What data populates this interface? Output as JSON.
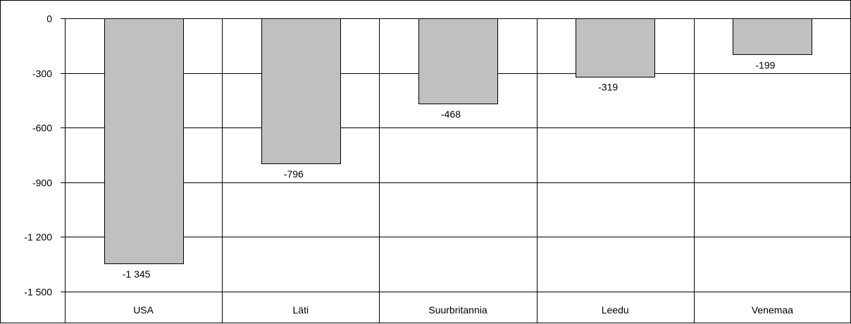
{
  "chart_data": {
    "type": "bar",
    "title": "",
    "xlabel": "",
    "ylabel": "",
    "categories": [
      "USA",
      "Läti",
      "Suurbritannia",
      "Leedu",
      "Venemaa"
    ],
    "values": [
      -1345,
      -796,
      -468,
      -319,
      -199
    ],
    "value_labels": [
      "-1 345",
      "-796",
      "-468",
      "-319",
      "-199"
    ],
    "ylim": [
      -1500,
      0
    ],
    "yticks": [
      0,
      -300,
      -600,
      -900,
      -1200,
      -1500
    ],
    "ytick_labels": [
      "0",
      "-300",
      "-600",
      "-900",
      "-1 200",
      "-1 500"
    ],
    "grid": true,
    "colors": {
      "bar_fill": "#c0c0c0",
      "bar_stroke": "#000000",
      "grid": "#000000"
    }
  }
}
